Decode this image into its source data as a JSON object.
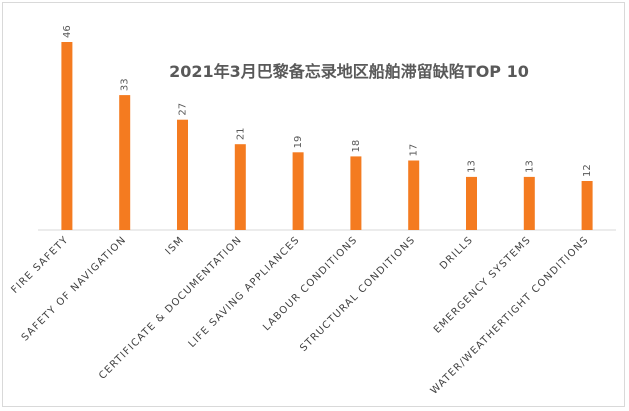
{
  "chart_data": {
    "type": "bar",
    "title": "2021年3月巴黎备忘录地区船舶滞留缺陷TOP 10",
    "categories": [
      "FIRE SAFETY",
      "SAFETY OF NAVIGATION",
      "ISM",
      "CERTIFICATE & DOCUMENTATION",
      "LIFE SAVING APPLIANCES",
      "LABOUR CONDITIONS",
      "STRUCTURAL CONDITIONS",
      "DRILLS",
      "EMERGENCY SYSTEMS",
      "WATER/WEATHERTIGHT CONDITIONS"
    ],
    "values": [
      46,
      33,
      27,
      21,
      19,
      18,
      17,
      13,
      13,
      12
    ],
    "xlabel": "",
    "ylabel": "",
    "ylim": [
      0,
      46
    ],
    "grid": false,
    "legend": "none",
    "bar_color": "#f47b20",
    "axis_color": "#d9d9d9"
  }
}
